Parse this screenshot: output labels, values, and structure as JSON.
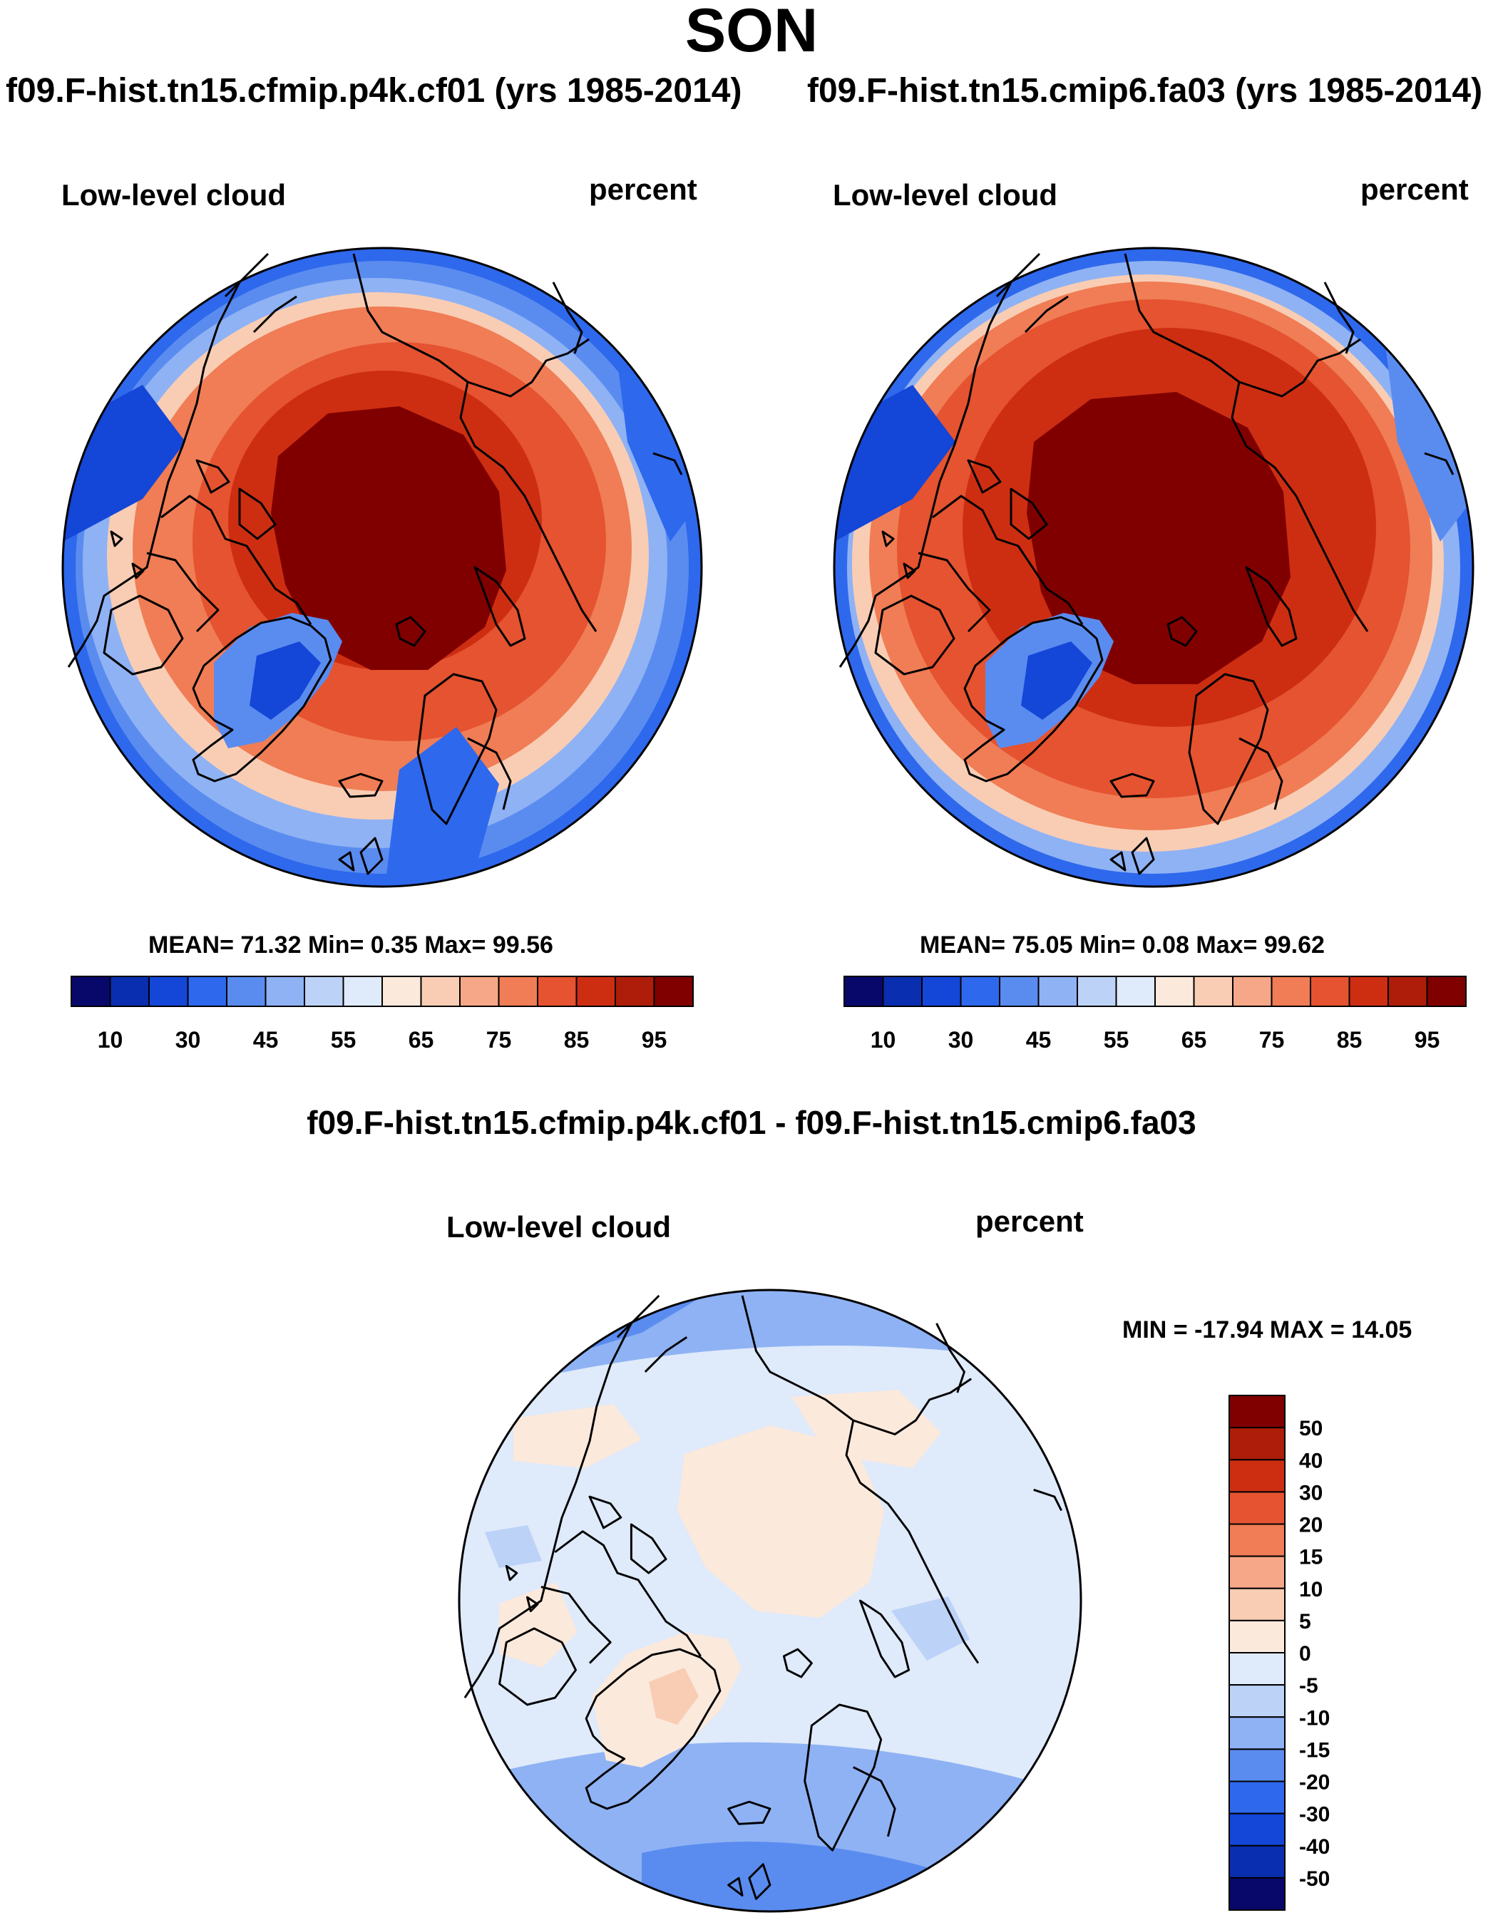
{
  "title": "SON",
  "panel_left": {
    "header": "f09.F-hist.tn15.cfmip.p4k.cf01 (yrs 1985-2014)",
    "variable": "Low-level cloud",
    "units": "percent",
    "stats": "MEAN=  71.32  Min=   0.35  Max=  99.56"
  },
  "panel_right": {
    "header": "f09.F-hist.tn15.cmip6.fa03 (yrs 1985-2014)",
    "variable": "Low-level cloud",
    "units": "percent",
    "stats": "MEAN=  75.05  Min=   0.08  Max=  99.62"
  },
  "panel_diff": {
    "header": "f09.F-hist.tn15.cfmip.p4k.cf01 - f09.F-hist.tn15.cmip6.fa03",
    "variable": "Low-level cloud",
    "units": "percent",
    "stats": "MIN = -17.94 MAX =  14.05"
  },
  "colorbar_abs": {
    "colors": [
      "#08086b",
      "#0a2eb0",
      "#1446d8",
      "#2e68ec",
      "#5a8cf0",
      "#8fb2f4",
      "#bcd2f7",
      "#dfeafa",
      "#fbe9dc",
      "#f9cdb4",
      "#f6a787",
      "#f07d55",
      "#e55330",
      "#cd2e12",
      "#ad1d0a",
      "#800000"
    ],
    "tick_labels": [
      "10",
      "30",
      "45",
      "55",
      "65",
      "75",
      "85",
      "95"
    ]
  },
  "colorbar_diff": {
    "colors": [
      "#800000",
      "#ad1d0a",
      "#cd2e12",
      "#e55330",
      "#f07d55",
      "#f6a787",
      "#f9cdb4",
      "#fbe9dc",
      "#dfeafa",
      "#bcd2f7",
      "#8fb2f4",
      "#5a8cf0",
      "#2e68ec",
      "#1446d8",
      "#0a2eb0",
      "#08086b"
    ],
    "tick_labels": [
      "50",
      "40",
      "30",
      "20",
      "15",
      "10",
      "5",
      "0",
      "-5",
      "-10",
      "-15",
      "-20",
      "-30",
      "-40",
      "-50"
    ]
  }
}
